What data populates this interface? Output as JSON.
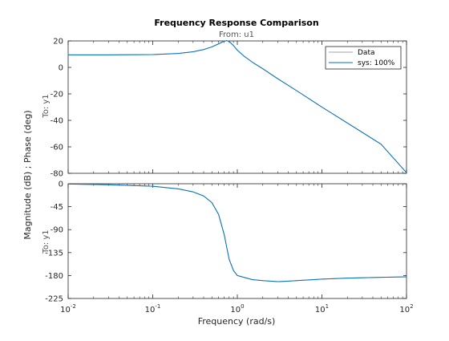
{
  "chart_data": {
    "type": "line",
    "title": "Frequency Response Comparison",
    "input_label": "From: u1",
    "output_label": "To: y1",
    "xlabel": "Frequency  (rad/s)",
    "ylabel": "Magnitude (dB) ; Phase (deg)",
    "xscale": "log",
    "xlim": [
      0.01,
      100
    ],
    "xticks": [
      0.01,
      0.1,
      1,
      10,
      100
    ],
    "xtick_labels": [
      {
        "base": "10",
        "exp": "-2"
      },
      {
        "base": "10",
        "exp": "-1"
      },
      {
        "base": "10",
        "exp": "0"
      },
      {
        "base": "10",
        "exp": "1"
      },
      {
        "base": "10",
        "exp": "2"
      }
    ],
    "grid": false,
    "legend": {
      "placement": "top-right",
      "entries": [
        "Data",
        "sys: 100%"
      ]
    },
    "colors": {
      "data": "#a6a6a6",
      "model": "#0072bd",
      "axes": "#262626"
    },
    "subplots": [
      {
        "name": "magnitude",
        "ylim": [
          -80,
          20
        ],
        "yticks": [
          20,
          0,
          -20,
          -40,
          -60,
          -80
        ],
        "ytick_labels": [
          "20",
          "0",
          "-20",
          "-40",
          "-60",
          "-80"
        ],
        "series": [
          {
            "name": "Data",
            "x": [
              0.01,
              0.03,
              0.1,
              0.2,
              0.3,
              0.4,
              0.5,
              0.6,
              0.7,
              0.75,
              0.8,
              0.9,
              1,
              1.2,
              1.5,
              2,
              3,
              5,
              10,
              20,
              50,
              100
            ],
            "y": [
              9.5,
              9.5,
              9.7,
              10.5,
              11.8,
              13.5,
              15.5,
              17.8,
              19.8,
              20.2,
              19.6,
              16.5,
              13.0,
              8.5,
              4.0,
              -1.0,
              -8.5,
              -17.5,
              -30.0,
              -42.0,
              -58.0,
              -79.5
            ]
          },
          {
            "name": "sys: 100%",
            "x": [
              0.01,
              0.03,
              0.1,
              0.2,
              0.3,
              0.4,
              0.5,
              0.6,
              0.7,
              0.75,
              0.8,
              0.9,
              1,
              1.2,
              1.5,
              2,
              3,
              5,
              10,
              20,
              50,
              100
            ],
            "y": [
              9.5,
              9.5,
              9.7,
              10.5,
              11.8,
              13.5,
              15.5,
              17.8,
              19.8,
              20.2,
              19.6,
              16.5,
              13.0,
              8.5,
              4.0,
              -1.0,
              -8.5,
              -17.5,
              -30.0,
              -42.0,
              -58.0,
              -79.5
            ]
          }
        ]
      },
      {
        "name": "phase",
        "ylim": [
          -225,
          0
        ],
        "yticks": [
          0,
          -45,
          -90,
          -135,
          -180,
          -225
        ],
        "ytick_labels": [
          "0",
          "-45",
          "-90",
          "-135",
          "-180",
          "-225"
        ],
        "series": [
          {
            "name": "Data",
            "x": [
              0.01,
              0.03,
              0.1,
              0.2,
              0.3,
              0.4,
              0.5,
              0.6,
              0.7,
              0.75,
              0.8,
              0.9,
              1,
              1.5,
              2,
              3,
              3.5,
              5,
              10,
              20,
              50,
              100
            ],
            "y": [
              -0.5,
              -2,
              -5,
              -10,
              -16,
              -24,
              -37,
              -60,
              -100,
              -125,
              -148,
              -170,
              -180,
              -188,
              -190,
              -192,
              -191.5,
              -190,
              -187,
              -185,
              -183.5,
              -182.5
            ]
          },
          {
            "name": "sys: 100%",
            "x": [
              0.01,
              0.03,
              0.1,
              0.2,
              0.3,
              0.4,
              0.5,
              0.6,
              0.7,
              0.75,
              0.8,
              0.9,
              1,
              1.5,
              2,
              3,
              3.5,
              5,
              10,
              20,
              50,
              100
            ],
            "y": [
              -0.5,
              -2,
              -5,
              -10,
              -16,
              -24,
              -37,
              -60,
              -100,
              -125,
              -148,
              -170,
              -180,
              -188,
              -190,
              -192,
              -191.5,
              -190,
              -187,
              -185,
              -183.5,
              -182.5
            ]
          }
        ]
      }
    ]
  }
}
